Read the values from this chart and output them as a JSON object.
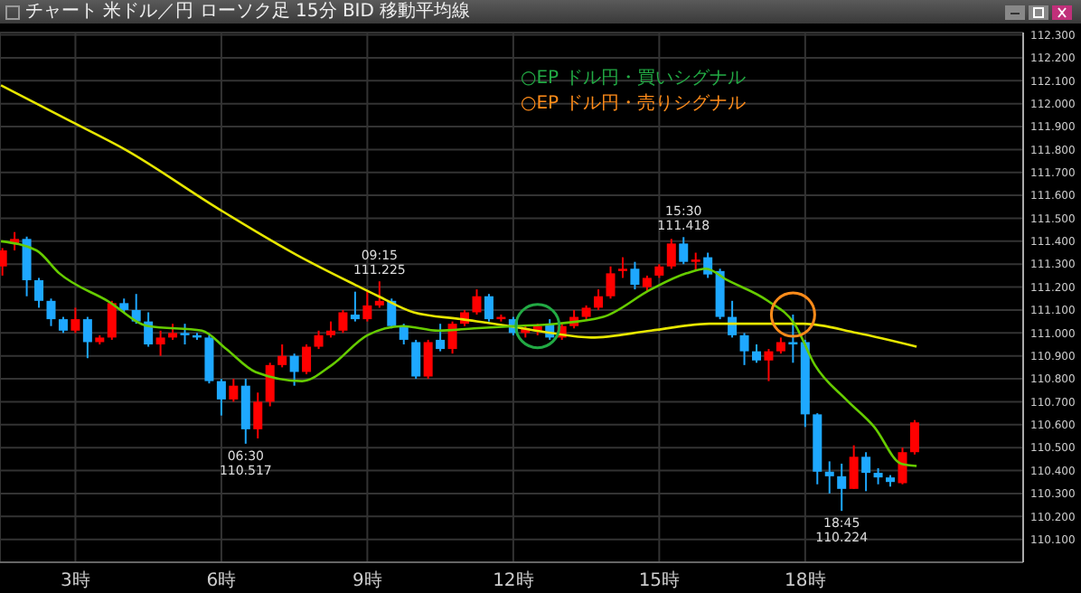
{
  "chart_data": {
    "type": "candlestick",
    "title": "チャート 米ドル／円 ローソク足 15分 BID 移動平均線",
    "x": [
      1.5,
      1.75,
      2,
      2.25,
      2.5,
      2.75,
      3,
      3.25,
      3.5,
      3.75,
      4,
      4.25,
      4.5,
      4.75,
      5,
      5.25,
      5.5,
      5.75,
      6,
      6.25,
      6.5,
      6.75,
      7,
      7.25,
      7.5,
      7.75,
      8,
      8.25,
      8.5,
      8.75,
      9,
      9.25,
      9.5,
      9.75,
      10,
      10.25,
      10.5,
      10.75,
      11,
      11.25,
      11.5,
      11.75,
      12,
      12.25,
      12.5,
      12.75,
      13,
      13.25,
      13.5,
      13.75,
      14,
      14.25,
      14.5,
      14.75,
      15,
      15.25,
      15.5,
      15.75,
      16,
      16.25,
      16.5,
      16.75,
      17,
      17.25,
      17.5,
      17.75,
      18,
      18.25,
      18.5,
      18.75,
      19,
      19.25,
      19.5,
      19.75,
      20,
      20.25
    ],
    "ohlc": [
      [
        111.29,
        111.37,
        111.25,
        111.36
      ],
      [
        111.39,
        111.44,
        111.36,
        111.41
      ],
      [
        111.41,
        111.42,
        111.16,
        111.23
      ],
      [
        111.23,
        111.24,
        111.11,
        111.14
      ],
      [
        111.14,
        111.15,
        111.03,
        111.06
      ],
      [
        111.06,
        111.07,
        111.0,
        111.01
      ],
      [
        111.01,
        111.11,
        111.0,
        111.06
      ],
      [
        111.06,
        111.07,
        110.89,
        110.96
      ],
      [
        110.96,
        110.99,
        110.95,
        110.98
      ],
      [
        110.98,
        111.14,
        110.97,
        111.13
      ],
      [
        111.13,
        111.15,
        111.09,
        111.1
      ],
      [
        111.1,
        111.17,
        111.04,
        111.05
      ],
      [
        111.05,
        111.09,
        110.94,
        110.95
      ],
      [
        110.95,
        111.01,
        110.9,
        110.98
      ],
      [
        110.98,
        111.04,
        110.97,
        111.0
      ],
      [
        111.0,
        111.04,
        110.95,
        110.99
      ],
      [
        110.99,
        111.0,
        110.97,
        110.98
      ],
      [
        110.98,
        110.99,
        110.78,
        110.79
      ],
      [
        110.79,
        110.8,
        110.64,
        110.71
      ],
      [
        110.71,
        110.8,
        110.7,
        110.77
      ],
      [
        110.77,
        110.8,
        110.517,
        110.58
      ],
      [
        110.58,
        110.74,
        110.54,
        110.7
      ],
      [
        110.7,
        110.87,
        110.68,
        110.86
      ],
      [
        110.86,
        110.95,
        110.85,
        110.9
      ],
      [
        110.9,
        110.91,
        110.77,
        110.83
      ],
      [
        110.83,
        110.95,
        110.82,
        110.94
      ],
      [
        110.94,
        111.01,
        110.93,
        110.99
      ],
      [
        110.99,
        111.05,
        110.98,
        111.01
      ],
      [
        111.01,
        111.1,
        111.0,
        111.09
      ],
      [
        111.08,
        111.18,
        111.05,
        111.06
      ],
      [
        111.06,
        111.18,
        111.05,
        111.12
      ],
      [
        111.12,
        111.225,
        111.11,
        111.14
      ],
      [
        111.14,
        111.15,
        111.02,
        111.03
      ],
      [
        111.03,
        111.04,
        110.95,
        110.97
      ],
      [
        110.96,
        110.97,
        110.8,
        110.81
      ],
      [
        110.81,
        110.97,
        110.8,
        110.96
      ],
      [
        110.97,
        111.04,
        110.92,
        110.93
      ],
      [
        110.93,
        111.05,
        110.91,
        111.04
      ],
      [
        111.04,
        111.1,
        111.03,
        111.09
      ],
      [
        111.09,
        111.19,
        111.08,
        111.16
      ],
      [
        111.16,
        111.17,
        111.05,
        111.06
      ],
      [
        111.06,
        111.08,
        111.05,
        111.07
      ],
      [
        111.06,
        111.07,
        110.99,
        111.0
      ],
      [
        111.0,
        111.03,
        110.98,
        111.02
      ],
      [
        111.01,
        111.04,
        110.99,
        111.03
      ],
      [
        111.04,
        111.06,
        110.97,
        110.98
      ],
      [
        110.98,
        111.04,
        110.97,
        111.03
      ],
      [
        111.03,
        111.1,
        111.02,
        111.07
      ],
      [
        111.07,
        111.12,
        111.06,
        111.11
      ],
      [
        111.11,
        111.19,
        111.1,
        111.16
      ],
      [
        111.16,
        111.29,
        111.15,
        111.26
      ],
      [
        111.27,
        111.33,
        111.24,
        111.28
      ],
      [
        111.28,
        111.31,
        111.19,
        111.21
      ],
      [
        111.2,
        111.25,
        111.18,
        111.24
      ],
      [
        111.25,
        111.3,
        111.24,
        111.29
      ],
      [
        111.29,
        111.41,
        111.28,
        111.39
      ],
      [
        111.39,
        111.418,
        111.3,
        111.31
      ],
      [
        111.31,
        111.35,
        111.27,
        111.32
      ],
      [
        111.33,
        111.35,
        111.24,
        111.255
      ],
      [
        111.27,
        111.28,
        111.06,
        111.07
      ],
      [
        111.07,
        111.14,
        110.98,
        110.99
      ],
      [
        110.99,
        111.0,
        110.86,
        110.92
      ],
      [
        110.92,
        110.95,
        110.87,
        110.88
      ],
      [
        110.88,
        110.93,
        110.79,
        110.92
      ],
      [
        110.92,
        110.98,
        110.91,
        110.96
      ],
      [
        110.96,
        111.08,
        110.87,
        110.95
      ],
      [
        110.96,
        110.97,
        110.59,
        110.645
      ],
      [
        110.645,
        110.65,
        110.34,
        110.395
      ],
      [
        110.395,
        110.44,
        110.3,
        110.375
      ],
      [
        110.375,
        110.43,
        110.224,
        110.32
      ],
      [
        110.32,
        110.51,
        110.32,
        110.46
      ],
      [
        110.46,
        110.48,
        110.31,
        110.39
      ],
      [
        110.39,
        110.41,
        110.34,
        110.37
      ],
      [
        110.37,
        110.38,
        110.33,
        110.35
      ],
      [
        110.345,
        110.5,
        110.34,
        110.48
      ],
      [
        110.48,
        110.62,
        110.47,
        110.61
      ]
    ],
    "colors": [
      "#ff0000",
      "#ff0000",
      "#1ea8ff",
      "#1ea8ff",
      "#1ea8ff",
      "#1ea8ff",
      "#ff0000",
      "#1ea8ff",
      "#ff0000",
      "#ff0000",
      "#1ea8ff",
      "#1ea8ff",
      "#1ea8ff",
      "#ff0000",
      "#ff0000",
      "#1ea8ff",
      "#1ea8ff",
      "#1ea8ff",
      "#1ea8ff",
      "#ff0000",
      "#1ea8ff",
      "#ff0000",
      "#ff0000",
      "#ff0000",
      "#1ea8ff",
      "#ff0000",
      "#ff0000",
      "#ff0000",
      "#ff0000",
      "#1ea8ff",
      "#ff0000",
      "#ff0000",
      "#1ea8ff",
      "#1ea8ff",
      "#1ea8ff",
      "#ff0000",
      "#1ea8ff",
      "#ff0000",
      "#ff0000",
      "#ff0000",
      "#1ea8ff",
      "#ff0000",
      "#1ea8ff",
      "#ff0000",
      "#ff0000",
      "#1ea8ff",
      "#ff0000",
      "#ff0000",
      "#ff0000",
      "#ff0000",
      "#ff0000",
      "#ff0000",
      "#1ea8ff",
      "#ff0000",
      "#ff0000",
      "#ff0000",
      "#1ea8ff",
      "#ff0000",
      "#1ea8ff",
      "#1ea8ff",
      "#1ea8ff",
      "#1ea8ff",
      "#1ea8ff",
      "#ff0000",
      "#ff0000",
      "#1ea8ff",
      "#1ea8ff",
      "#1ea8ff",
      "#1ea8ff",
      "#1ea8ff",
      "#ff0000",
      "#1ea8ff",
      "#1ea8ff",
      "#1ea8ff",
      "#ff0000",
      "#ff0000"
    ],
    "series": [
      {
        "type": "line",
        "color": "#e6e600",
        "marker": "none",
        "x": [
          1.47,
          2.93,
          4.02,
          5.95,
          7.55,
          8.75,
          9.23,
          9.95,
          10.94,
          11.92,
          12.76,
          13.6,
          14.83,
          16.03,
          17.97,
          19.06,
          20.29
        ],
        "values": [
          112.08,
          111.92,
          111.8,
          111.54,
          111.34,
          111.21,
          111.16,
          111.09,
          111.06,
          111.03,
          111.0,
          110.98,
          111.01,
          111.04,
          111.04,
          111.0,
          110.94
        ]
      },
      {
        "type": "line",
        "color": "#66cc00",
        "marker": "none",
        "x": [
          1.47,
          2.2,
          2.67,
          3.66,
          4.5,
          5.6,
          6.1,
          6.7,
          7.66,
          8.27,
          9.0,
          9.73,
          10.46,
          11.19,
          12.03,
          12.87,
          13.85,
          14.83,
          15.56,
          15.96,
          16.4,
          17.23,
          17.78,
          18.2,
          18.84,
          19.42,
          19.97,
          20.29
        ],
        "values": [
          111.4,
          111.36,
          111.26,
          111.14,
          111.03,
          111.01,
          110.93,
          110.83,
          110.79,
          110.86,
          110.99,
          111.03,
          111.01,
          111.02,
          111.03,
          111.04,
          111.07,
          111.19,
          111.26,
          111.28,
          111.23,
          111.14,
          111.04,
          110.86,
          110.71,
          110.59,
          110.43,
          110.42
        ]
      },
      {
        "type": "scatter",
        "name": "○EP ドル円・買いシグナル",
        "color": "#22aa44",
        "marker": "circle",
        "x": [
          12.5
        ],
        "values": [
          111.03
        ]
      },
      {
        "type": "scatter",
        "name": "○EP ドル円・売りシグナル",
        "color": "#ff8c1a",
        "marker": "circle",
        "x": [
          17.75
        ],
        "values": [
          111.08
        ]
      }
    ],
    "xlim": [
      1.45,
      22.48
    ],
    "xticks": [
      {
        "value": 3,
        "label": "3時"
      },
      {
        "value": 6,
        "label": "6時"
      },
      {
        "value": 9,
        "label": "9時"
      },
      {
        "value": 12,
        "label": "12時"
      },
      {
        "value": 15,
        "label": "15時"
      },
      {
        "value": 18,
        "label": "18時"
      }
    ],
    "ylim": [
      110.0,
      112.31
    ],
    "yticks": [
      {
        "value": 110.1,
        "label": "110.100"
      },
      {
        "value": 110.2,
        "label": "110.200"
      },
      {
        "value": 110.3,
        "label": "110.300"
      },
      {
        "value": 110.4,
        "label": "110.400"
      },
      {
        "value": 110.5,
        "label": "110.500"
      },
      {
        "value": 110.6,
        "label": "110.600"
      },
      {
        "value": 110.7,
        "label": "110.700"
      },
      {
        "value": 110.8,
        "label": "110.800"
      },
      {
        "value": 110.9,
        "label": "110.900"
      },
      {
        "value": 111.0,
        "label": "111.000"
      },
      {
        "value": 111.1,
        "label": "111.100"
      },
      {
        "value": 111.2,
        "label": "111.200"
      },
      {
        "value": 111.3,
        "label": "111.300"
      },
      {
        "value": 111.4,
        "label": "111.400"
      },
      {
        "value": 111.5,
        "label": "111.500"
      },
      {
        "value": 111.6,
        "label": "111.600"
      },
      {
        "value": 111.7,
        "label": "111.700"
      },
      {
        "value": 111.8,
        "label": "111.800"
      },
      {
        "value": 111.9,
        "label": "111.900"
      },
      {
        "value": 112.0,
        "label": "112.000"
      },
      {
        "value": 112.1,
        "label": "112.100"
      },
      {
        "value": 112.2,
        "label": "112.200"
      },
      {
        "value": 112.3,
        "label": "112.300"
      }
    ],
    "grid": true,
    "legend": "top",
    "annotations": [
      {
        "text": "09:15",
        "x": 9.25,
        "y": 111.225
      },
      {
        "text": "111.225",
        "x": 9.25,
        "y": 111.225
      },
      {
        "text": "06:30",
        "x": 6.5,
        "y": 110.517
      },
      {
        "text": "110.517",
        "x": 6.5,
        "y": 110.517
      },
      {
        "text": "15:30",
        "x": 15.5,
        "y": 111.418
      },
      {
        "text": "111.418",
        "x": 15.5,
        "y": 111.418
      },
      {
        "text": "18:45",
        "x": 18.75,
        "y": 110.224
      },
      {
        "text": "110.224",
        "x": 18.75,
        "y": 110.224
      }
    ]
  }
}
